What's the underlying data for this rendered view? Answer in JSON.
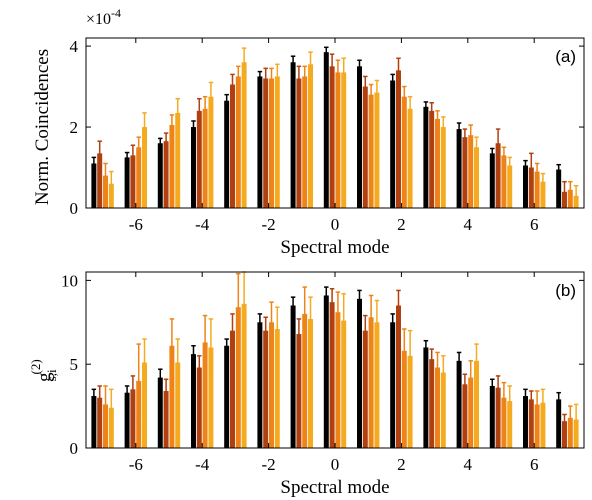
{
  "colors": {
    "black_series": "#000000",
    "rust_series": "#b0400f",
    "orange_series": "#ee8418",
    "yellow_series": "#f5ab1f"
  },
  "chart_data": [
    {
      "type": "bar",
      "panel_label": "(a)",
      "xlabel": "Spectral mode",
      "ylabel": "Norm. Coincidences",
      "exponent_label": "×10",
      "exponent_power": "-4",
      "x": [
        -7,
        -6,
        -5,
        -4,
        -3,
        -2,
        -1,
        0,
        1,
        2,
        3,
        4,
        5,
        6,
        7
      ],
      "xlim": [
        -7.5,
        7.5
      ],
      "ylim": [
        0,
        4.2
      ],
      "xticks": [
        -6,
        -4,
        -2,
        0,
        2,
        4,
        6
      ],
      "yticks": [
        0,
        2,
        4
      ],
      "grid": false,
      "series": [
        {
          "color_key": "black_series",
          "values": [
            1.1,
            1.25,
            1.6,
            2.0,
            2.65,
            3.25,
            3.6,
            3.85,
            3.5,
            3.15,
            2.5,
            1.95,
            1.35,
            1.05,
            0.95
          ],
          "errors": [
            0.15,
            0.12,
            0.12,
            0.15,
            0.15,
            0.12,
            0.15,
            0.12,
            0.15,
            0.15,
            0.12,
            0.15,
            0.12,
            0.12,
            0.12
          ]
        },
        {
          "color_key": "rust_series",
          "values": [
            1.35,
            1.3,
            1.65,
            2.4,
            3.05,
            3.2,
            3.2,
            3.5,
            3.0,
            3.4,
            2.4,
            1.75,
            1.6,
            1.0,
            0.4
          ],
          "errors": [
            0.3,
            0.25,
            0.2,
            0.3,
            0.25,
            0.25,
            0.3,
            0.3,
            0.25,
            0.3,
            0.2,
            0.2,
            0.35,
            0.35,
            0.25
          ]
        },
        {
          "color_key": "orange_series",
          "values": [
            0.8,
            1.5,
            2.05,
            2.45,
            3.25,
            3.2,
            3.25,
            3.35,
            2.8,
            2.75,
            2.2,
            1.8,
            1.3,
            0.9,
            0.45
          ],
          "errors": [
            0.3,
            0.25,
            0.25,
            0.3,
            0.25,
            0.25,
            0.25,
            0.3,
            0.25,
            0.25,
            0.2,
            0.25,
            0.2,
            0.2,
            0.2
          ]
        },
        {
          "color_key": "yellow_series",
          "values": [
            0.6,
            2.0,
            2.35,
            2.75,
            3.6,
            3.25,
            3.55,
            3.35,
            2.85,
            2.45,
            2.0,
            1.5,
            1.05,
            0.65,
            0.3
          ],
          "errors": [
            0.3,
            0.35,
            0.35,
            0.35,
            0.35,
            0.3,
            0.3,
            0.35,
            0.3,
            0.3,
            0.25,
            0.25,
            0.2,
            0.2,
            0.25
          ]
        }
      ]
    },
    {
      "type": "bar",
      "panel_label": "(b)",
      "xlabel": "Spectral mode",
      "ylabel": "g",
      "ylabel_sup": "(2)",
      "ylabel_sub": "s,i",
      "x": [
        -7,
        -6,
        -5,
        -4,
        -3,
        -2,
        -1,
        0,
        1,
        2,
        3,
        4,
        5,
        6,
        7
      ],
      "xlim": [
        -7.5,
        7.5
      ],
      "ylim": [
        0,
        10.5
      ],
      "xticks": [
        -6,
        -4,
        -2,
        0,
        2,
        4,
        6
      ],
      "yticks": [
        0,
        5,
        10
      ],
      "grid": false,
      "series": [
        {
          "color_key": "black_series",
          "values": [
            3.1,
            3.3,
            4.2,
            5.6,
            6.1,
            7.5,
            8.5,
            9.1,
            8.9,
            7.5,
            6.0,
            5.2,
            3.7,
            3.1,
            2.9
          ],
          "errors": [
            0.4,
            0.4,
            0.5,
            0.5,
            0.4,
            0.5,
            0.5,
            0.5,
            0.5,
            0.5,
            0.4,
            0.5,
            0.4,
            0.4,
            0.4
          ]
        },
        {
          "color_key": "rust_series",
          "values": [
            3.0,
            3.5,
            3.4,
            4.8,
            7.0,
            7.0,
            6.8,
            8.7,
            7.0,
            8.5,
            5.3,
            3.8,
            3.6,
            2.9,
            1.6
          ],
          "errors": [
            0.7,
            0.8,
            0.7,
            0.7,
            1.0,
            0.8,
            0.9,
            0.8,
            0.9,
            0.9,
            0.6,
            0.6,
            0.7,
            0.5,
            0.4
          ]
        },
        {
          "color_key": "orange_series",
          "values": [
            2.6,
            4.0,
            6.1,
            6.3,
            8.4,
            7.5,
            8.0,
            8.1,
            7.8,
            5.8,
            4.8,
            4.2,
            3.0,
            2.6,
            1.8
          ],
          "errors": [
            1.1,
            2.2,
            1.6,
            1.6,
            2.0,
            1.2,
            1.6,
            1.2,
            1.3,
            1.3,
            0.9,
            1.0,
            0.9,
            0.8,
            0.7
          ]
        },
        {
          "color_key": "yellow_series",
          "values": [
            2.4,
            5.1,
            5.1,
            6.0,
            8.6,
            7.1,
            7.7,
            7.6,
            7.5,
            5.5,
            4.5,
            5.2,
            2.8,
            2.7,
            1.7
          ],
          "errors": [
            1.1,
            1.4,
            1.4,
            1.7,
            1.9,
            1.3,
            1.3,
            1.6,
            1.3,
            1.5,
            1.0,
            1.0,
            0.9,
            0.8,
            0.9
          ]
        }
      ]
    }
  ]
}
